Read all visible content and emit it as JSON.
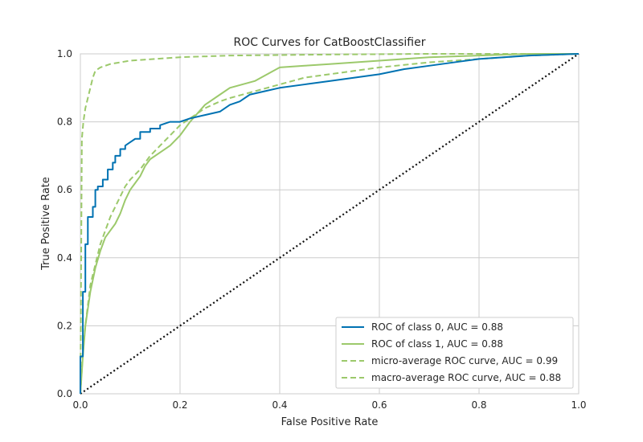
{
  "chart_data": {
    "type": "line",
    "title": "ROC Curves for CatBoostClassifier",
    "xlabel": "False Positive Rate",
    "ylabel": "True Positive Rate",
    "xlim": [
      0,
      1
    ],
    "ylim": [
      0,
      1
    ],
    "x_ticks": [
      "0.0",
      "0.2",
      "0.4",
      "0.6",
      "0.8",
      "1.0"
    ],
    "y_ticks": [
      "0.0",
      "0.2",
      "0.4",
      "0.6",
      "0.8",
      "1.0"
    ],
    "grid": true,
    "legend_position": "bottom-right",
    "colors": {
      "class_0": "#0072B2",
      "class_1": "#9CC96B",
      "average": "#9CC96B",
      "diagonal": "#111111"
    },
    "series": [
      {
        "name": "ROC of class 0, AUC = 0.88",
        "style": "solid",
        "x": [
          0,
          0,
          0.005,
          0.005,
          0.01,
          0.01,
          0.015,
          0.015,
          0.025,
          0.025,
          0.03,
          0.03,
          0.035,
          0.035,
          0.045,
          0.045,
          0.055,
          0.055,
          0.065,
          0.065,
          0.07,
          0.07,
          0.08,
          0.08,
          0.09,
          0.09,
          0.1,
          0.11,
          0.12,
          0.12,
          0.14,
          0.14,
          0.16,
          0.16,
          0.18,
          0.2,
          0.22,
          0.25,
          0.28,
          0.3,
          0.32,
          0.34,
          0.37,
          0.4,
          0.45,
          0.5,
          0.55,
          0.6,
          0.65,
          0.7,
          0.75,
          0.8,
          0.9,
          1.0
        ],
        "y": [
          0,
          0.11,
          0.11,
          0.3,
          0.3,
          0.44,
          0.44,
          0.52,
          0.52,
          0.55,
          0.55,
          0.6,
          0.6,
          0.61,
          0.61,
          0.63,
          0.63,
          0.66,
          0.66,
          0.68,
          0.68,
          0.7,
          0.7,
          0.72,
          0.72,
          0.73,
          0.74,
          0.75,
          0.75,
          0.77,
          0.77,
          0.78,
          0.78,
          0.79,
          0.8,
          0.8,
          0.81,
          0.82,
          0.83,
          0.85,
          0.86,
          0.88,
          0.89,
          0.9,
          0.91,
          0.92,
          0.93,
          0.94,
          0.955,
          0.965,
          0.975,
          0.985,
          0.995,
          1.0
        ]
      },
      {
        "name": "ROC of class 1, AUC = 0.88",
        "style": "solid",
        "x": [
          0,
          0.005,
          0.01,
          0.02,
          0.03,
          0.04,
          0.05,
          0.06,
          0.07,
          0.08,
          0.09,
          0.1,
          0.11,
          0.12,
          0.13,
          0.14,
          0.16,
          0.18,
          0.2,
          0.22,
          0.25,
          0.28,
          0.3,
          0.35,
          0.4,
          0.45,
          0.5,
          0.6,
          0.7,
          0.8,
          0.9,
          1.0
        ],
        "y": [
          0,
          0.11,
          0.2,
          0.3,
          0.37,
          0.42,
          0.46,
          0.48,
          0.5,
          0.53,
          0.57,
          0.6,
          0.62,
          0.64,
          0.67,
          0.69,
          0.71,
          0.73,
          0.76,
          0.8,
          0.85,
          0.88,
          0.9,
          0.92,
          0.96,
          0.965,
          0.97,
          0.98,
          0.99,
          0.995,
          1.0,
          1.0
        ]
      },
      {
        "name": "micro-average ROC curve, AUC = 0.99",
        "style": "dashed",
        "x": [
          0,
          0.003,
          0.006,
          0.01,
          0.015,
          0.02,
          0.025,
          0.03,
          0.04,
          0.06,
          0.1,
          0.2,
          0.3,
          0.5,
          0.7,
          1.0
        ],
        "y": [
          0,
          0.75,
          0.8,
          0.84,
          0.87,
          0.9,
          0.93,
          0.95,
          0.96,
          0.97,
          0.98,
          0.99,
          0.995,
          0.998,
          1.0,
          1.0
        ]
      },
      {
        "name": "macro-average ROC curve, AUC = 0.88",
        "style": "dashed",
        "x": [
          0,
          0.005,
          0.01,
          0.02,
          0.03,
          0.04,
          0.05,
          0.06,
          0.07,
          0.08,
          0.09,
          0.1,
          0.12,
          0.14,
          0.16,
          0.18,
          0.2,
          0.22,
          0.25,
          0.28,
          0.3,
          0.35,
          0.4,
          0.45,
          0.5,
          0.55,
          0.6,
          0.7,
          0.8,
          0.9,
          1.0
        ],
        "y": [
          0,
          0.12,
          0.2,
          0.32,
          0.38,
          0.44,
          0.48,
          0.52,
          0.55,
          0.58,
          0.61,
          0.63,
          0.66,
          0.7,
          0.73,
          0.76,
          0.79,
          0.81,
          0.84,
          0.86,
          0.87,
          0.89,
          0.91,
          0.93,
          0.94,
          0.95,
          0.96,
          0.975,
          0.985,
          0.995,
          1.0
        ]
      },
      {
        "name": "",
        "style": "dotted",
        "x": [
          0,
          1
        ],
        "y": [
          0,
          1
        ]
      }
    ]
  }
}
